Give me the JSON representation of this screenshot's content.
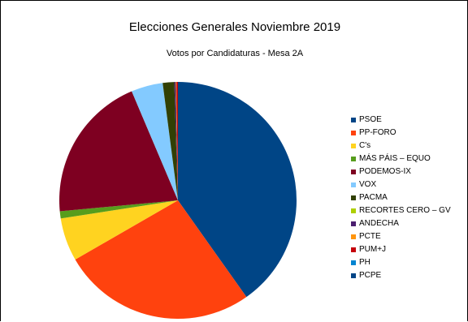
{
  "chart_data": {
    "type": "pie",
    "title": "Elecciones Generales Noviembre 2019",
    "subtitle": "Votos por Candidaturas - Mesa 2A",
    "legend_position": "right",
    "series": [
      {
        "name": "PSOE",
        "value": 41.0,
        "color": "#004586"
      },
      {
        "name": "PP-FORO",
        "value": 27.0,
        "color": "#ff420e"
      },
      {
        "name": "C's",
        "value": 6.0,
        "color": "#ffd320"
      },
      {
        "name": "MÁS PÁIS – EQUO",
        "value": 1.0,
        "color": "#579d1c"
      },
      {
        "name": "PODEMOS-IX",
        "value": 20.5,
        "color": "#7e0021"
      },
      {
        "name": "VOX",
        "value": 4.4,
        "color": "#83caff"
      },
      {
        "name": "PACMA",
        "value": 1.6,
        "color": "#314004"
      },
      {
        "name": "RECORTES CERO – GV",
        "value": 0.0,
        "color": "#aecf00"
      },
      {
        "name": "ANDECHA",
        "value": 0.2,
        "color": "#4b1f6f"
      },
      {
        "name": "PCTE",
        "value": 0.1,
        "color": "#ff950e"
      },
      {
        "name": "PUM+J",
        "value": 0.2,
        "color": "#c5000b"
      },
      {
        "name": "PH",
        "value": 0.0,
        "color": "#0084d1"
      },
      {
        "name": "PCPE",
        "value": 0.0,
        "color": "#004586"
      }
    ]
  }
}
